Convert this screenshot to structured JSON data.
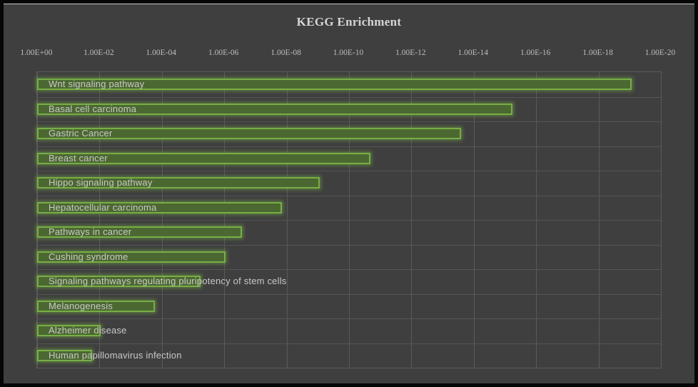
{
  "window": {
    "frame_color": "#060606",
    "background_color": "#3f3f3f",
    "top_highlight_color": "#c9c9c9"
  },
  "chart_data": {
    "type": "bar",
    "orientation": "horizontal",
    "title": "KEGG Enrichment",
    "x_axis": {
      "position": "top",
      "scale": "log10",
      "direction": "reversed (1E+00 at left, 1E-20 at right)",
      "range_exponents": [
        0,
        -20
      ],
      "tick_labels": [
        "1.00E+00",
        "1.00E-02",
        "1.00E-04",
        "1.00E-06",
        "1.00E-08",
        "1.00E-10",
        "1.00E-12",
        "1.00E-14",
        "1.00E-16",
        "1.00E-18",
        "1.00E-20"
      ]
    },
    "categories": [
      "Wnt signaling pathway",
      "Basal cell carcinoma",
      "Gastric Cancer",
      "Breast cancer",
      "Hippo signaling pathway",
      "Hepatocellular carcinoma",
      "Pathways in cancer",
      "Cushing syndrome",
      "Signaling pathways regulating pluripotency of stem cells",
      "Melanogenesis",
      "Alzheimer disease",
      "Human papillomavirus infection"
    ],
    "values": [
      8.7e-20,
      5.8e-16,
      2.6e-14,
      2.1e-11,
      8.7e-10,
      1.4e-08,
      2.7e-07,
      9.1e-07,
      5.8e-06,
      0.00017,
      0.0092,
      0.017
    ],
    "value_meaning": "enrichment p-value (bar length = -log10(p) on reversed log axis)",
    "grid": {
      "vertical": true,
      "horizontal": true,
      "color": "#5a5a5a"
    },
    "legend": "none",
    "colors": {
      "bar_fill": "#4c6832",
      "bar_border": "#77ae45",
      "bar_glow": "rgba(119,174,69,0.5)",
      "title_text": "#d6d6d6",
      "axis_text": "#bdbdbd",
      "label_text": "#c9c9c9"
    }
  }
}
